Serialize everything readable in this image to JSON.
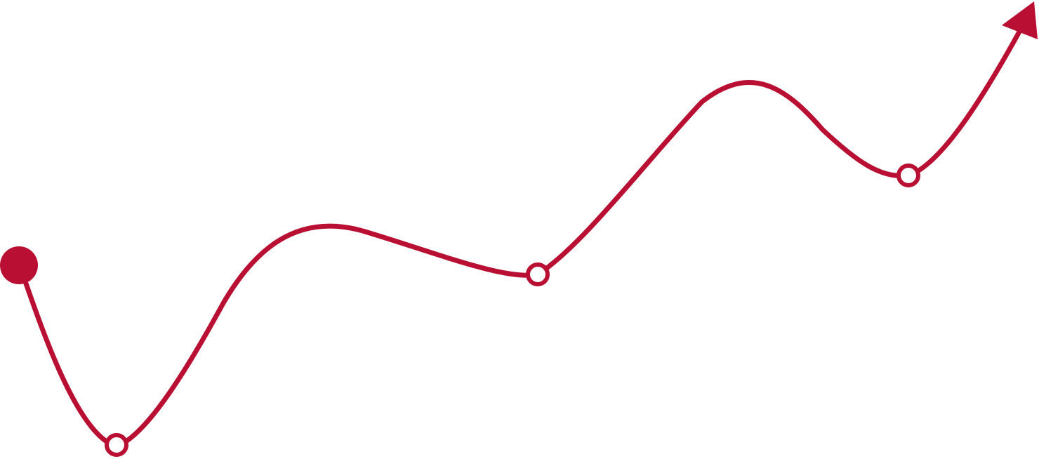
{
  "diagram": {
    "type": "trend-path",
    "colors": {
      "stroke": "#b80f32",
      "node_fill": "#ffffff",
      "start_fill": "#b80f32",
      "background": "#ffffff"
    },
    "start_marker": "filled-circle",
    "end_marker": "arrowhead",
    "milestone_marker": "hollow-circle",
    "milestone_count": 3
  }
}
